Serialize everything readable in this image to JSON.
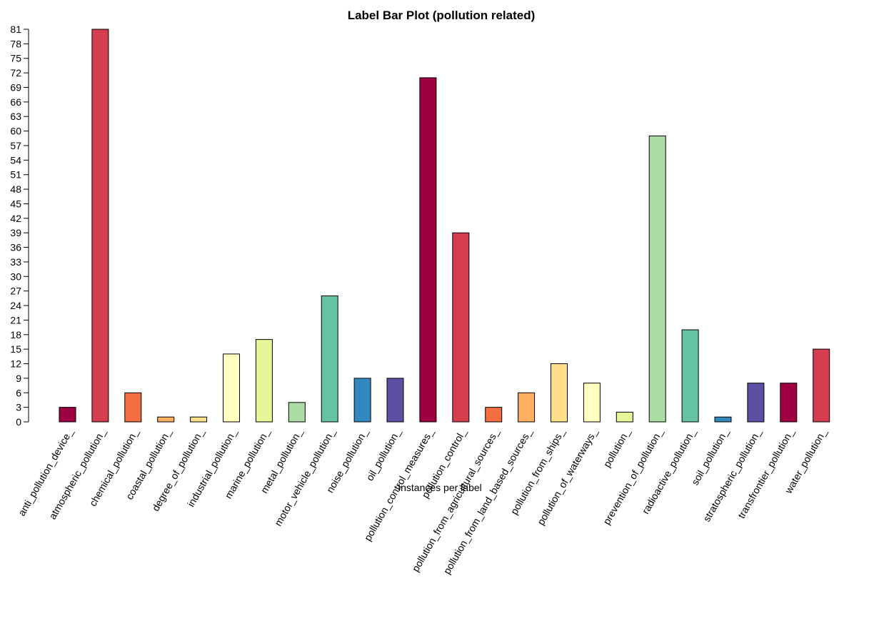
{
  "chart_data": {
    "type": "bar",
    "title": "Label Bar Plot (pollution related)",
    "xlabel": "Instances per label",
    "ylabel": "",
    "ylim": [
      0,
      81
    ],
    "yticks": [
      0,
      3,
      6,
      9,
      12,
      15,
      18,
      21,
      24,
      27,
      30,
      33,
      36,
      39,
      42,
      45,
      48,
      51,
      54,
      57,
      60,
      63,
      66,
      69,
      72,
      75,
      78,
      81
    ],
    "grid": false,
    "legend": "none",
    "categories": [
      "anti_pollution_device_",
      "atmospheric_pollution_",
      "chemical_pollution_",
      "coastal_pollution_",
      "degree_of_pollution_",
      "industrial_pollution_",
      "marine_pollution_",
      "metal_pollution_",
      "motor_vehicle_pollution_",
      "noise_pollution_",
      "oil_pollution_",
      "pollution_control_measures_",
      "pollution_control_",
      "pollution_from_agricultural_sources_",
      "pollution_from_land_based_sources_",
      "pollution_from_ships_",
      "pollution_of_waterways_",
      "pollution_",
      "prevention_of_pollution_",
      "radioactive_pollution_",
      "soil_pollution_",
      "stratospheric_pollution_",
      "transfrontier_pollution_",
      "water_pollution_"
    ],
    "values": [
      3,
      81,
      6,
      1,
      1,
      14,
      17,
      4,
      26,
      9,
      9,
      71,
      39,
      3,
      6,
      12,
      8,
      2,
      59,
      19,
      1,
      8,
      8,
      15
    ],
    "colors": [
      "#9E0142",
      "#D53E4F",
      "#F46D43",
      "#FDAE61",
      "#FEE08B",
      "#FFFFBF",
      "#E6F598",
      "#ABDDA4",
      "#66C2A5",
      "#3288BD",
      "#5E4FA2",
      "#9E0142",
      "#D53E4F",
      "#F46D43",
      "#FDAE61",
      "#FEE08B",
      "#FFFFBF",
      "#E6F598",
      "#ABDDA4",
      "#66C2A5",
      "#3288BD",
      "#5E4FA2",
      "#9E0142",
      "#D53E4F"
    ]
  }
}
